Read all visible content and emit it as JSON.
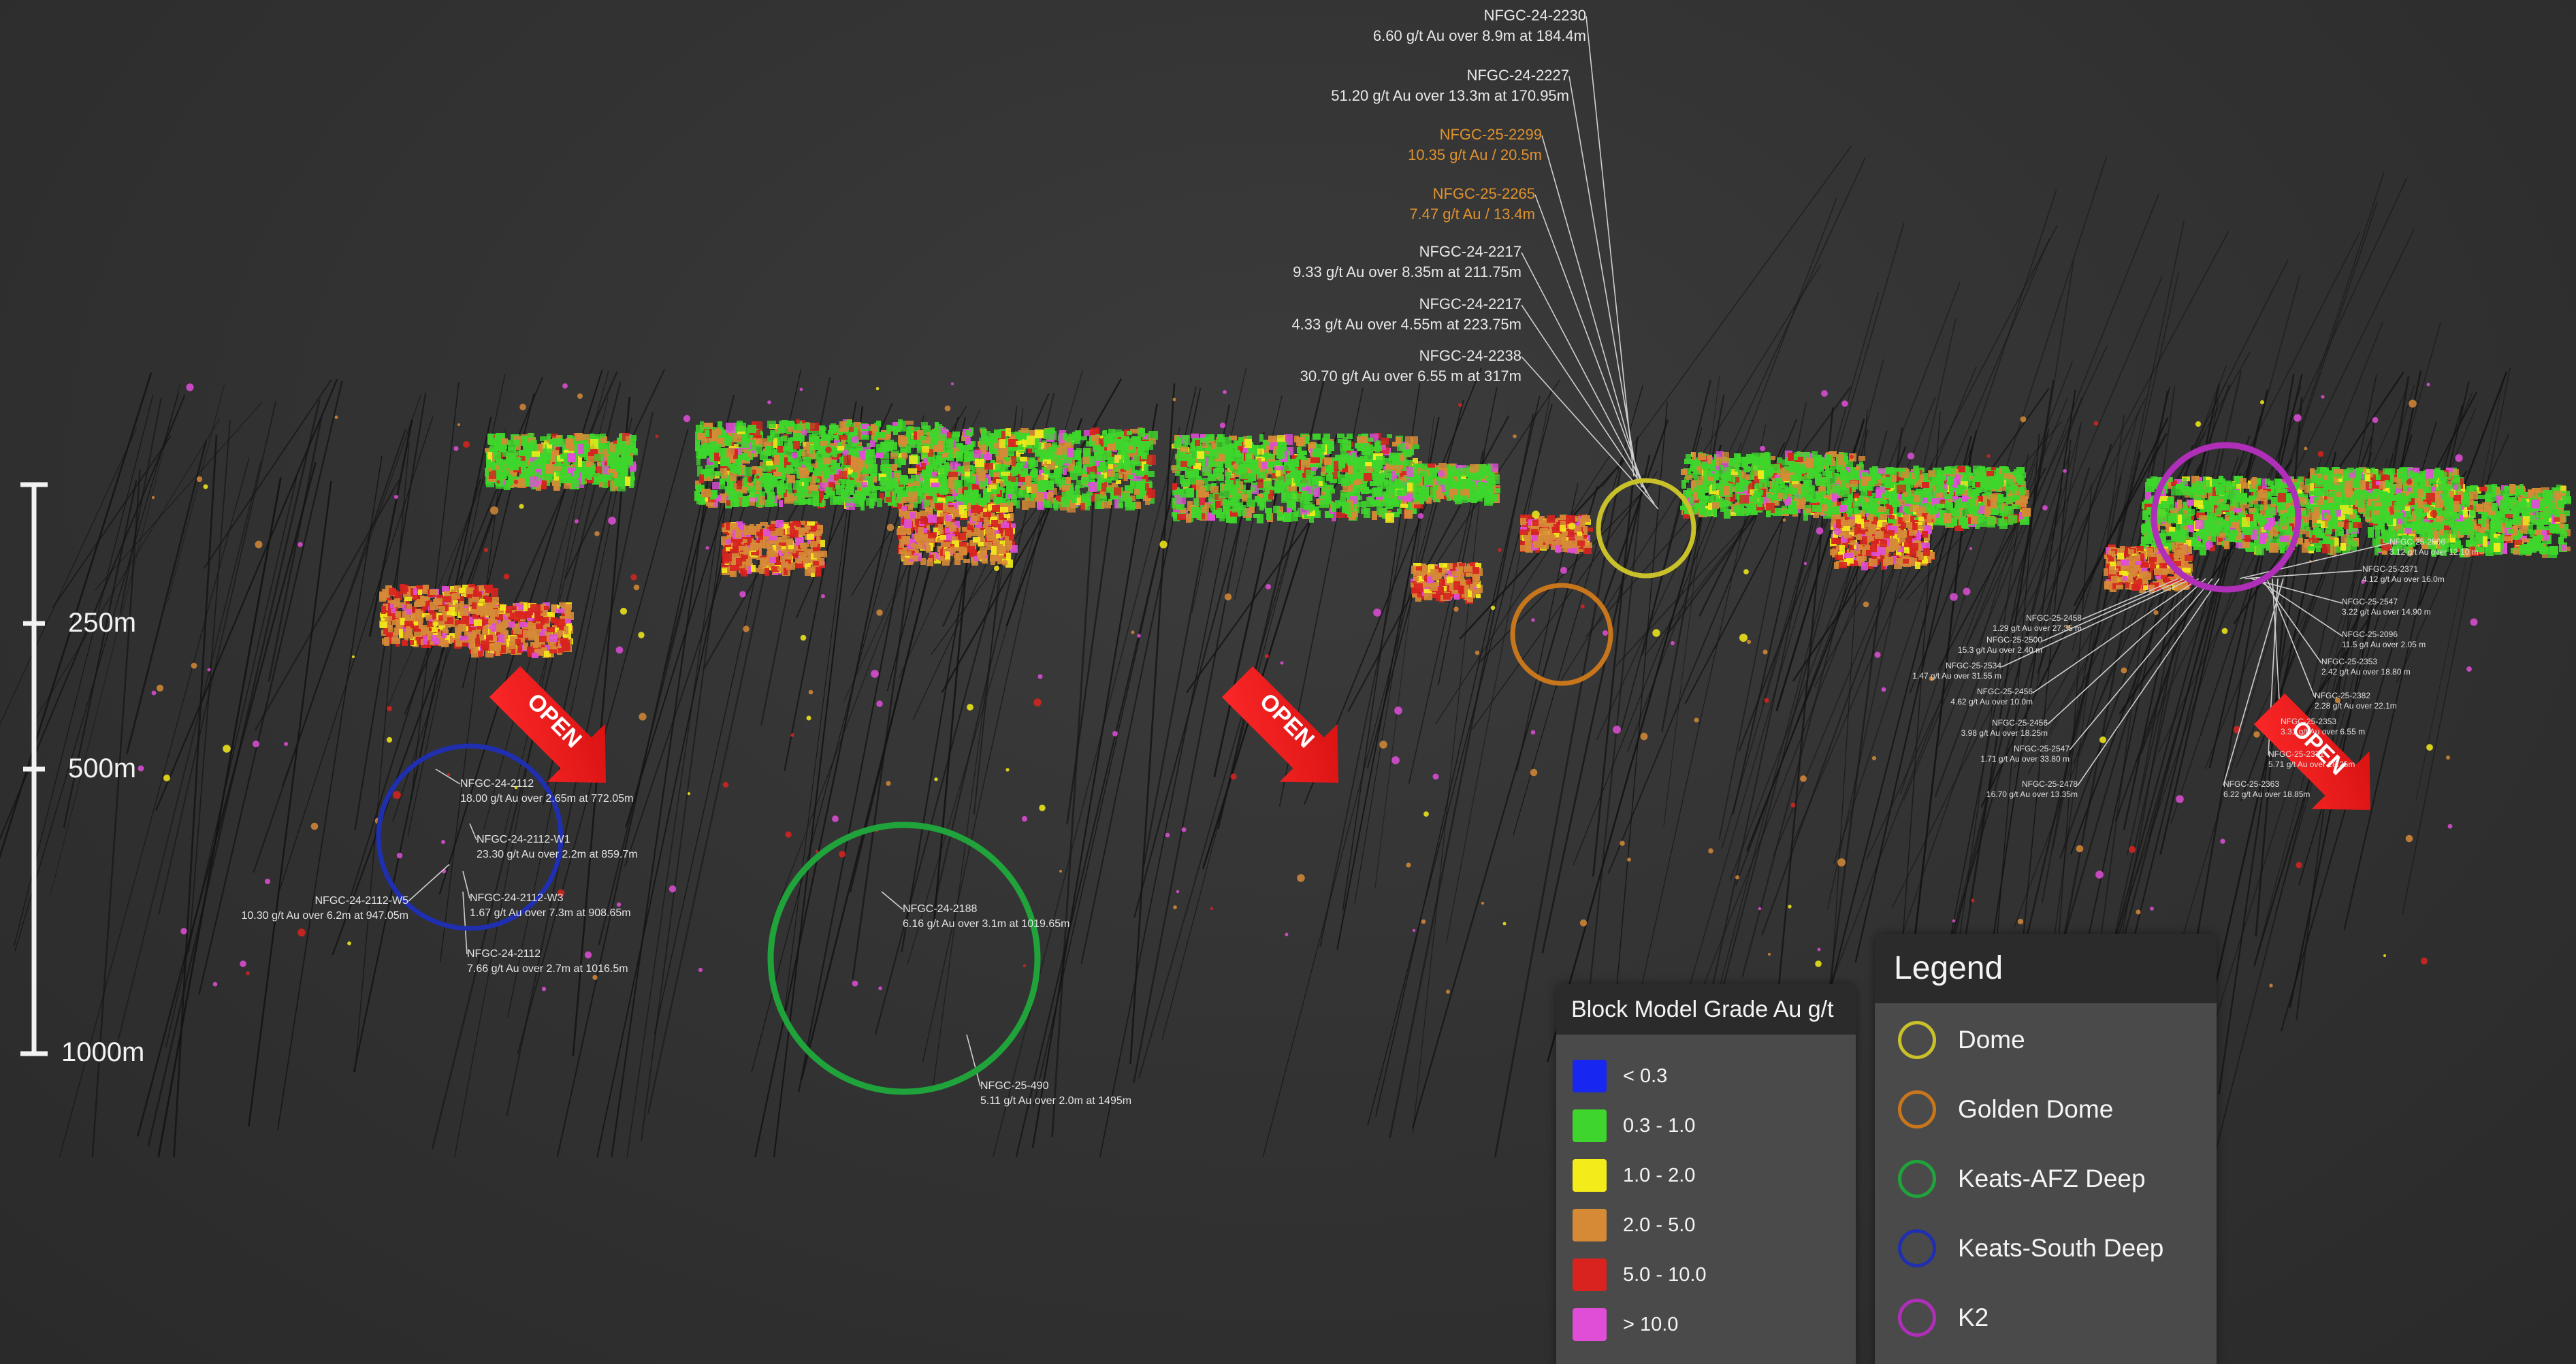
{
  "scale_bar": {
    "labels": [
      "250m",
      "500m",
      "1000m"
    ]
  },
  "open_label": "OPEN",
  "zones": [
    {
      "name": "Dome",
      "color": "#c9c12a"
    },
    {
      "name": "Golden Dome",
      "color": "#c8761c"
    },
    {
      "name": "Keats-AFZ Deep",
      "color": "#1fa33a"
    },
    {
      "name": "Keats-South Deep",
      "color": "#1f2fb0"
    },
    {
      "name": "K2",
      "color": "#b02fb8"
    }
  ],
  "grade_legend": {
    "title": "Block Model Grade Au g/t",
    "items": [
      {
        "label": "< 0.3",
        "color": "#1727f0"
      },
      {
        "label": "0.3 - 1.0",
        "color": "#3ed62c"
      },
      {
        "label": "1.0 - 2.0",
        "color": "#f4ec1a"
      },
      {
        "label": "2.0 - 5.0",
        "color": "#d68a36"
      },
      {
        "label": "5.0 - 10.0",
        "color": "#d8231f"
      },
      {
        "label": "> 10.0",
        "color": "#e04ed8"
      }
    ]
  },
  "legend": {
    "title": "Legend",
    "items": [
      {
        "label": "Dome",
        "color": "#c9c12a"
      },
      {
        "label": "Golden Dome",
        "color": "#c8761c"
      },
      {
        "label": "Keats-AFZ Deep",
        "color": "#1fa33a"
      },
      {
        "label": "Keats-South Deep",
        "color": "#1f2fb0"
      },
      {
        "label": "K2",
        "color": "#b02fb8"
      }
    ]
  },
  "callouts_top": [
    {
      "hole": "NFGC-24-2230",
      "result": "6.60 g/t Au over 8.9m at 184.4m",
      "color": "#e8e8e8"
    },
    {
      "hole": "NFGC-24-2227",
      "result": "51.20 g/t Au over 13.3m at 170.95m",
      "color": "#e8e8e8"
    },
    {
      "hole": "NFGC-25-2299",
      "result": "10.35 g/t Au / 20.5m",
      "color": "#e0922e"
    },
    {
      "hole": "NFGC-25-2265",
      "result": "7.47 g/t Au / 13.4m",
      "color": "#e0922e"
    },
    {
      "hole": "NFGC-24-2217",
      "result": "9.33 g/t Au over 8.35m at 211.75m",
      "color": "#e8e8e8"
    },
    {
      "hole": "NFGC-24-2217",
      "result": "4.33 g/t Au over 4.55m at 223.75m",
      "color": "#e8e8e8"
    },
    {
      "hole": "NFGC-24-2238",
      "result": "30.70 g/t Au over 6.55 m at 317m",
      "color": "#e8e8e8"
    }
  ],
  "callouts_left": [
    {
      "hole": "NFGC-24-2112",
      "result": "18.00 g/t Au over 2.65m at 772.05m"
    },
    {
      "hole": "NFGC-24-2112-W1",
      "result": "23.30 g/t Au over 2.2m at 859.7m"
    },
    {
      "hole": "NFGC-24-2112-W3",
      "result": "1.67 g/t Au over 7.3m at 908.65m"
    },
    {
      "hole": "NFGC-24-2112-W5",
      "result": "10.30 g/t Au over 6.2m at 947.05m"
    },
    {
      "hole": "NFGC-24-2112",
      "result": "7.66 g/t Au over 2.7m at 1016.5m"
    },
    {
      "hole": "NFGC-24-2188",
      "result": "6.16 g/t Au over 3.1m at 1019.65m"
    },
    {
      "hole": "NFGC-25-490",
      "result": "5.11 g/t Au over 2.0m at 1495m"
    }
  ],
  "callouts_k2_left": [
    {
      "hole": "NFGC-25-2458",
      "result": "1.29 g/t Au over 27.35 m"
    },
    {
      "hole": "NFGC-25-2500",
      "result": "15.3 g/t Au over 2.40 m"
    },
    {
      "hole": "NFGC-25-2534",
      "result": "1.47 g/t Au over 31.55 m"
    },
    {
      "hole": "NFGC-25-2456",
      "result": "4.62 g/t Au over 10.0m"
    },
    {
      "hole": "NFGC-25-2456",
      "result": "3.98 g/t Au over 18.25m"
    },
    {
      "hole": "NFGC-25-2547",
      "result": "1.71 g/t Au over 33.80 m"
    },
    {
      "hole": "NFGC-25-2478",
      "result": "16.70 g/t Au over 13.35m"
    }
  ],
  "callouts_k2_right": [
    {
      "hole": "NFGC-25-2506",
      "result": "3.12 g/t Au over 12.10 m"
    },
    {
      "hole": "NFGC-25-2371",
      "result": "4.12 g/t Au over 16.0m"
    },
    {
      "hole": "NFGC-25-2547",
      "result": "3.22 g/t Au over 14.90 m"
    },
    {
      "hole": "NFGC-25-2096",
      "result": "11.5 g/t Au over 2.05 m"
    },
    {
      "hole": "NFGC-25-2353",
      "result": "2.42 g/t Au over 18.80 m"
    },
    {
      "hole": "NFGC-25-2382",
      "result": "2.28 g/t Au over 22.1m"
    },
    {
      "hole": "NFGC-25-2353",
      "result": "3.31 g/t Au over 6.55 m"
    },
    {
      "hole": "NFGC-25-2371",
      "result": "5.71 g/t Au over 18.25m"
    },
    {
      "hole": "NFGC-25-2363",
      "result": "6.22 g/t Au over 18.85m"
    }
  ]
}
